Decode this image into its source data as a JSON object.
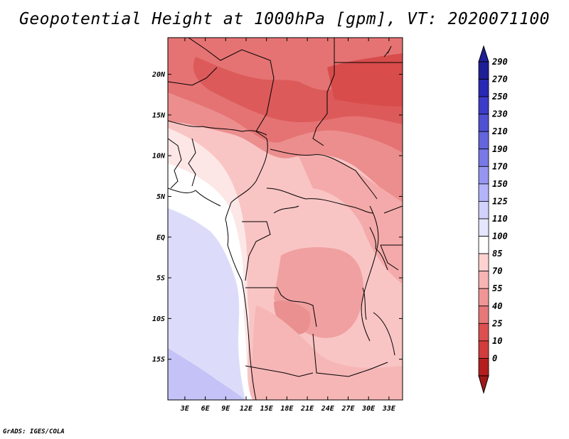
{
  "title": "Geopotential Height at 1000hPa [gpm], VT: 2020071100",
  "credit": "GrADS: IGES/COLA",
  "map": {
    "lat_labels": [
      {
        "label": "20N",
        "value": 20
      },
      {
        "label": "15N",
        "value": 15
      },
      {
        "label": "10N",
        "value": 10
      },
      {
        "label": "5N",
        "value": 5
      },
      {
        "label": "EQ",
        "value": 0
      },
      {
        "label": "5S",
        "value": -5
      },
      {
        "label": "10S",
        "value": -10
      },
      {
        "label": "15S",
        "value": -15
      }
    ],
    "lon_labels": [
      {
        "label": "3E",
        "value": 3
      },
      {
        "label": "6E",
        "value": 6
      },
      {
        "label": "9E",
        "value": 9
      },
      {
        "label": "12E",
        "value": 12
      },
      {
        "label": "15E",
        "value": 15
      },
      {
        "label": "18E",
        "value": 18
      },
      {
        "label": "21E",
        "value": 21
      },
      {
        "label": "24E",
        "value": 24
      },
      {
        "label": "27E",
        "value": 27
      },
      {
        "label": "30E",
        "value": 30
      },
      {
        "label": "33E",
        "value": 33
      }
    ],
    "lon_range": [
      0.5,
      35
    ],
    "lat_range": [
      -20,
      24.5
    ]
  },
  "colorbar": {
    "levels": [
      "290",
      "270",
      "250",
      "230",
      "210",
      "190",
      "170",
      "150",
      "125",
      "110",
      "100",
      "85",
      "70",
      "55",
      "40",
      "25",
      "10",
      "0"
    ],
    "colors": [
      "#1e1e96",
      "#2828b4",
      "#3c3cc8",
      "#5050d2",
      "#6464dc",
      "#7878e6",
      "#9696f0",
      "#b4b4fa",
      "#d2d2ff",
      "#e6e6ff",
      "#ffffff",
      "#ffd2d2",
      "#f8b4b4",
      "#f09696",
      "#e67878",
      "#dc5050",
      "#d23c3c",
      "#b41e1e"
    ],
    "top_arrow_color": "#1e1e96",
    "bottom_arrow_color": "#a01818"
  }
}
